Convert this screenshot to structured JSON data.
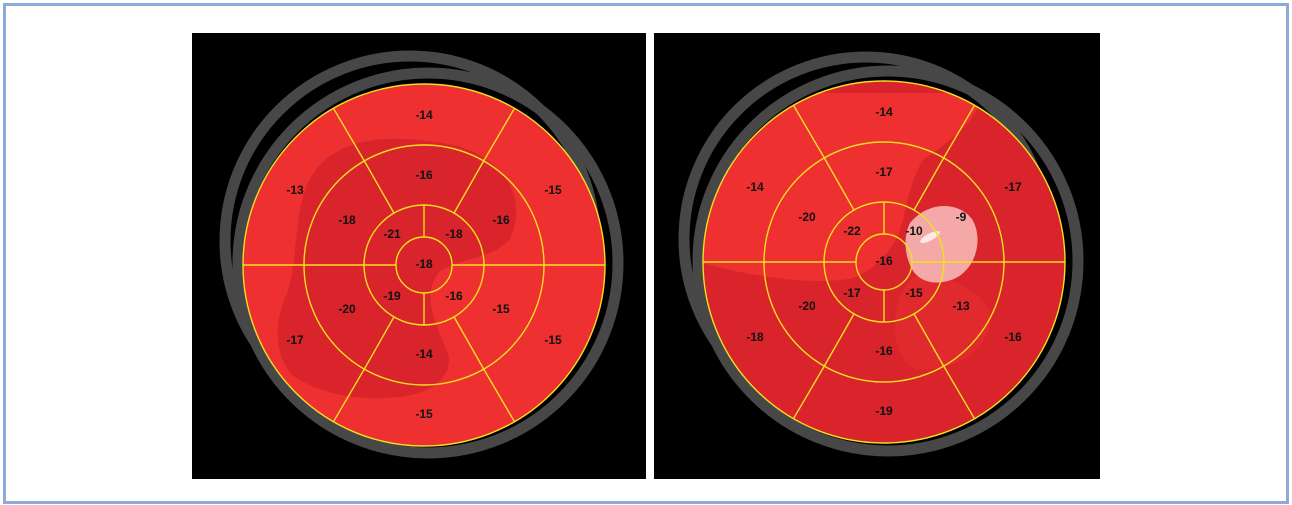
{
  "colors": {
    "frame_border": "#8faad8",
    "panel_background": "#000000",
    "outer_ring": "#474747",
    "segment_base": "#ee3030",
    "segment_dark": "#d8242a",
    "segment_light": "#f4a8a8",
    "segment_lines": "#f2e020",
    "label_text": "#111111"
  },
  "bullseye_maps": [
    {
      "name": "left",
      "values": {
        "basal": [
          "-14",
          "-15",
          "-15",
          "-15",
          "-17",
          "-13"
        ],
        "mid": [
          "-16",
          "-16",
          "-15",
          "-14",
          "-20",
          "-18"
        ],
        "apical": [
          "-18",
          "-16",
          "-19",
          "-21"
        ],
        "apex": "-18"
      }
    },
    {
      "name": "right",
      "values": {
        "basal": [
          "-14",
          "-17",
          "-16",
          "-19",
          "-18",
          "-14"
        ],
        "mid": [
          "-17",
          "-9",
          "-13",
          "-16",
          "-20",
          "-20"
        ],
        "apical": [
          "-10",
          "-15",
          "-17",
          "-22"
        ],
        "apex": "-16"
      }
    }
  ]
}
